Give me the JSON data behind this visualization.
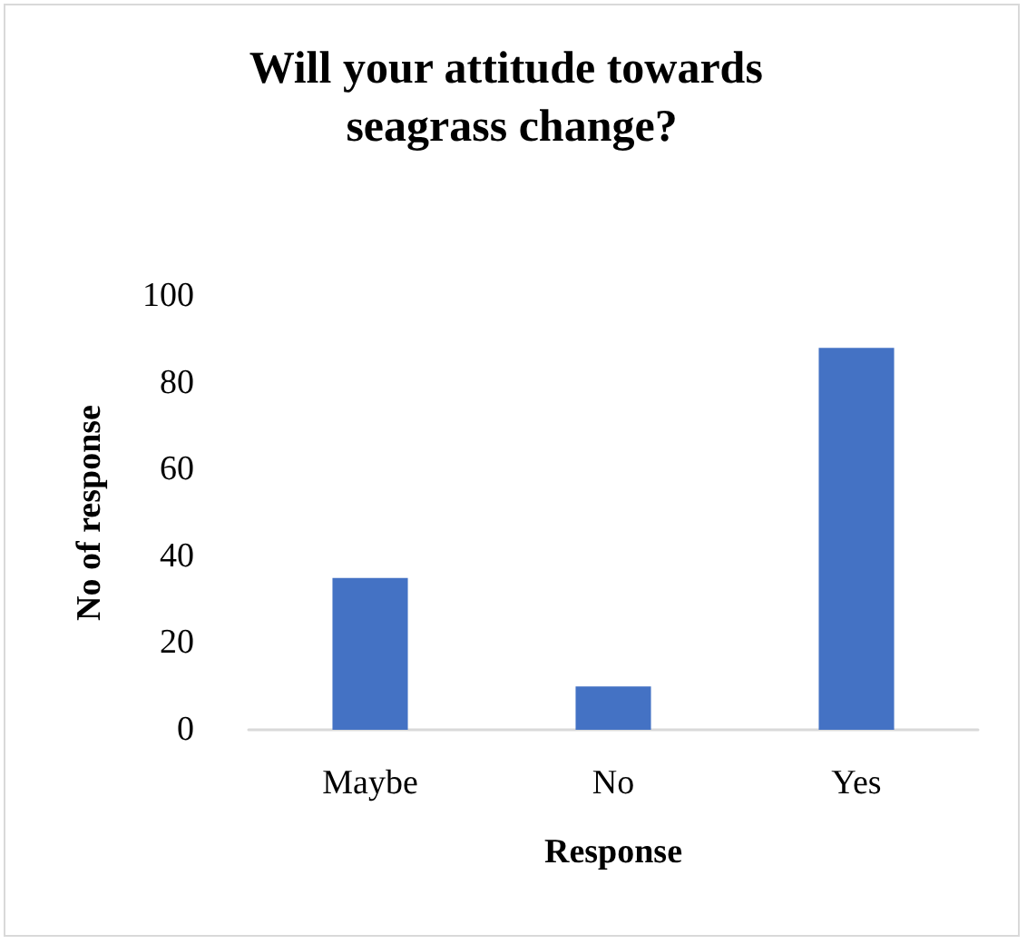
{
  "chart_data": {
    "type": "bar",
    "title": "Will your attitude towards seagrass change?",
    "xlabel": "Response",
    "ylabel": "No of response",
    "categories": [
      "Maybe",
      "No",
      "Yes"
    ],
    "values": [
      35,
      10,
      88
    ],
    "color": "#4472c4",
    "ylim": [
      0,
      100
    ],
    "yticks": [
      0,
      20,
      40,
      60,
      80,
      100
    ],
    "grid": false
  }
}
